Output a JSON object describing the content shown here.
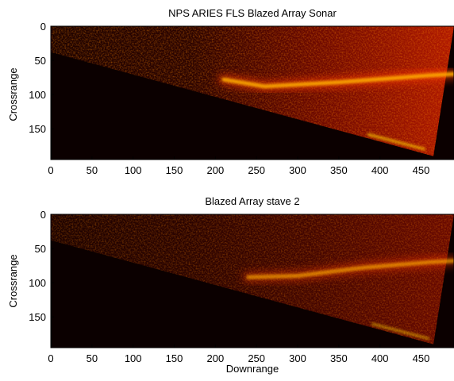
{
  "chart_data": [
    {
      "type": "heatmap",
      "title": "NPS ARIES FLS Blazed Array Sonar",
      "xlabel": "",
      "ylabel": "Crossrange",
      "xlim": [
        0,
        490
      ],
      "ylim": [
        0,
        195
      ],
      "y_reversed": true,
      "x_ticks": [
        0,
        50,
        100,
        150,
        200,
        250,
        300,
        350,
        400,
        450
      ],
      "y_ticks": [
        0,
        50,
        100,
        150
      ],
      "colormap": "hot",
      "sector_edge": [
        [
          0,
          38
        ],
        [
          465,
          190
        ]
      ],
      "far_edge": [
        [
          490,
          0
        ],
        [
          465,
          190
        ]
      ],
      "bright_band": [
        [
          210,
          78
        ],
        [
          260,
          88
        ],
        [
          350,
          82
        ],
        [
          460,
          72
        ],
        [
          490,
          70
        ]
      ],
      "bright_edge_end": [
        455,
        180
      ],
      "band_intensity": 1.0,
      "noise_intensity": 0.5
    },
    {
      "type": "heatmap",
      "title": "Blazed Array stave 2",
      "xlabel": "Downrange",
      "ylabel": "Crossrange",
      "xlim": [
        0,
        490
      ],
      "ylim": [
        0,
        195
      ],
      "y_reversed": true,
      "x_ticks": [
        0,
        50,
        100,
        150,
        200,
        250,
        300,
        350,
        400,
        450
      ],
      "y_ticks": [
        0,
        50,
        100,
        150
      ],
      "colormap": "hot",
      "sector_edge": [
        [
          0,
          38
        ],
        [
          465,
          190
        ]
      ],
      "far_edge": [
        [
          490,
          0
        ],
        [
          465,
          190
        ]
      ],
      "bright_band": [
        [
          240,
          92
        ],
        [
          300,
          90
        ],
        [
          380,
          78
        ],
        [
          460,
          70
        ],
        [
          490,
          68
        ]
      ],
      "bright_edge_end": [
        460,
        182
      ],
      "band_intensity": 0.75,
      "noise_intensity": 0.3
    }
  ]
}
